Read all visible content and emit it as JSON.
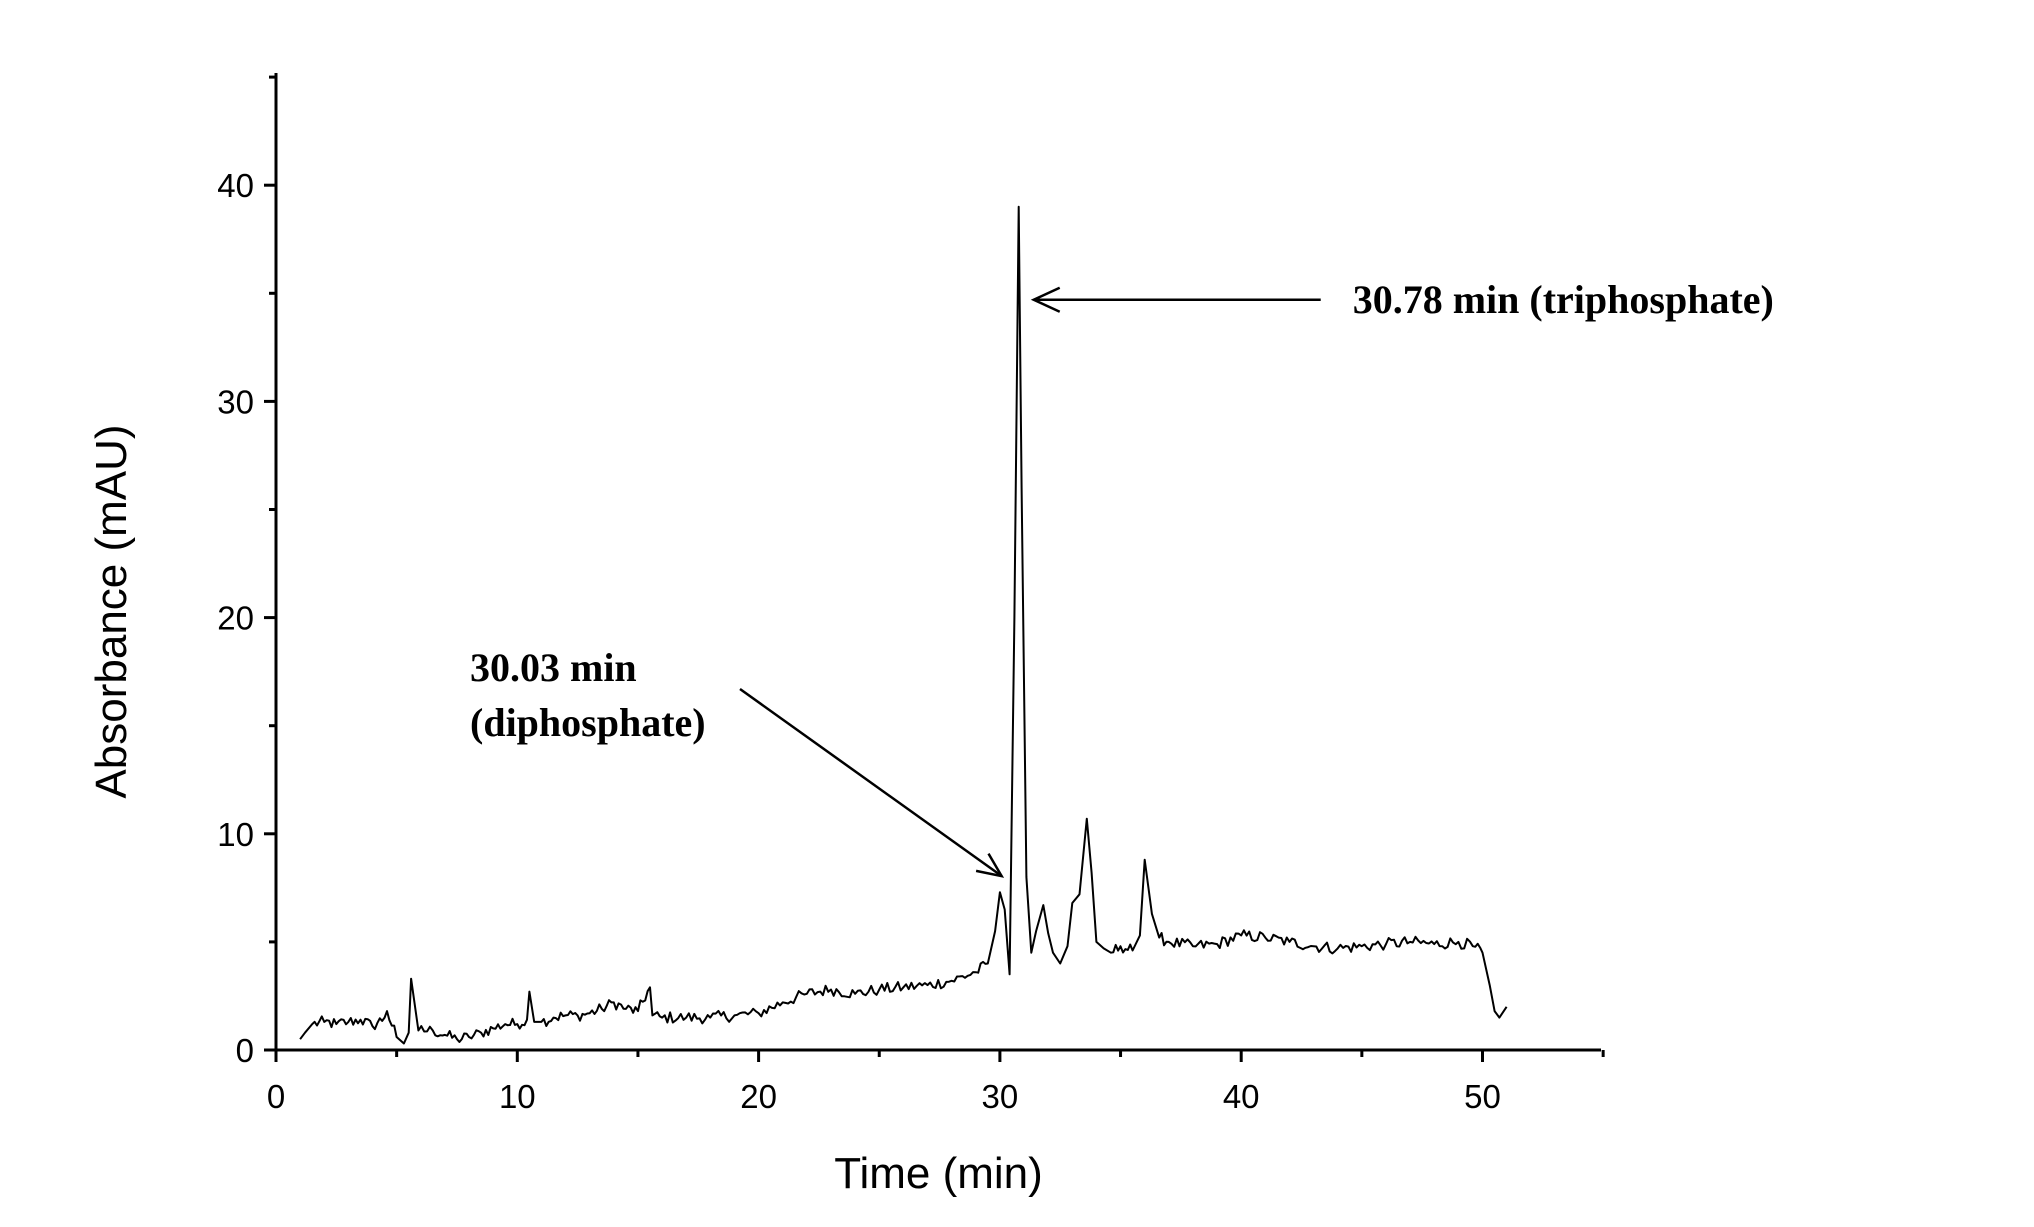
{
  "chart_data": {
    "type": "line",
    "title": "",
    "xlabel": "Time (min)",
    "ylabel": "Absorbance (mAU)",
    "xlim": [
      0,
      55
    ],
    "ylim": [
      0,
      45
    ],
    "x_ticks": [
      0,
      10,
      20,
      30,
      40,
      50
    ],
    "y_ticks": [
      0,
      10,
      20,
      30,
      40
    ],
    "grid": false,
    "series": [
      {
        "color": "#000000",
        "x": [
          1.0,
          1.2,
          1.5,
          2.0,
          2.5,
          3.0,
          3.5,
          4.0,
          4.5,
          4.6,
          5.0,
          5.3,
          5.5,
          5.6,
          5.9,
          6.5,
          7.0,
          7.5,
          8.0,
          8.5,
          9.0,
          9.5,
          10.0,
          10.4,
          10.5,
          10.7,
          11.0,
          11.5,
          12.0,
          12.5,
          13.0,
          13.5,
          14.0,
          14.5,
          15.0,
          15.5,
          15.6,
          16.0,
          17.0,
          18.0,
          19.0,
          20.0,
          21.0,
          22.0,
          23.0,
          24.0,
          25.0,
          26.0,
          27.0,
          28.0,
          29.0,
          29.5,
          29.8,
          30.0,
          30.2,
          30.4,
          30.6,
          30.78,
          30.9,
          31.1,
          31.3,
          31.5,
          31.8,
          32.0,
          32.2,
          32.5,
          32.8,
          33.0,
          33.3,
          33.6,
          33.8,
          34.0,
          34.3,
          34.6,
          35.0,
          35.5,
          35.8,
          36.0,
          36.3,
          36.6,
          37.0,
          38.0,
          39.0,
          40.0,
          41.0,
          42.0,
          43.0,
          44.0,
          45.0,
          46.0,
          47.0,
          48.0,
          49.0,
          49.6,
          50.0,
          50.3,
          50.5,
          50.7,
          51.0
        ],
        "y": [
          0.5,
          0.8,
          1.2,
          1.3,
          1.2,
          1.3,
          1.4,
          1.1,
          1.5,
          1.8,
          0.6,
          0.3,
          0.8,
          3.3,
          0.9,
          0.9,
          0.7,
          0.5,
          0.6,
          0.8,
          1.0,
          1.2,
          1.2,
          1.4,
          2.7,
          1.3,
          1.3,
          1.5,
          1.6,
          1.6,
          1.7,
          1.9,
          2.2,
          1.9,
          1.8,
          2.9,
          1.6,
          1.5,
          1.5,
          1.5,
          1.6,
          1.7,
          2.2,
          2.6,
          2.8,
          2.6,
          2.8,
          2.9,
          3.0,
          3.2,
          3.6,
          4.0,
          5.5,
          7.3,
          6.5,
          3.5,
          20.0,
          39.0,
          26.0,
          8.0,
          4.5,
          5.5,
          6.7,
          5.4,
          4.5,
          4.0,
          4.8,
          6.8,
          7.2,
          10.7,
          8.2,
          5.0,
          4.7,
          4.5,
          4.8,
          4.6,
          5.3,
          8.8,
          6.3,
          5.2,
          5.0,
          4.8,
          4.9,
          5.3,
          5.2,
          5.0,
          4.8,
          4.7,
          4.8,
          4.9,
          5.0,
          4.9,
          5.0,
          4.8,
          4.5,
          3.0,
          1.8,
          1.5,
          2.0
        ]
      }
    ],
    "annotations": [
      {
        "lines": [
          "30.78 min (triphosphate)"
        ],
        "x": 30.78,
        "y": 34.7
      },
      {
        "lines": [
          "30.03 min",
          "(diphosphate)"
        ],
        "x": 30.03,
        "y": 8.0
      }
    ]
  }
}
